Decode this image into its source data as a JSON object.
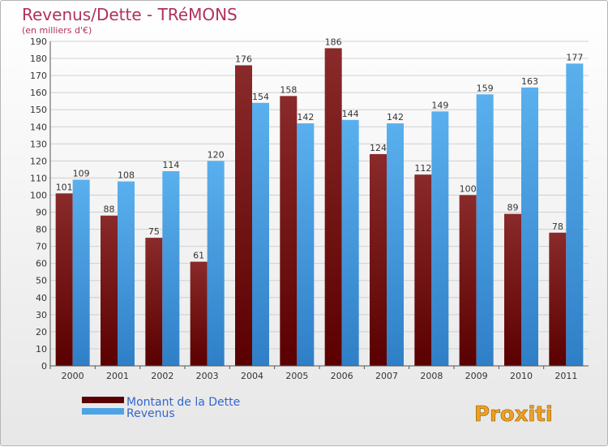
{
  "chart_data": {
    "type": "bar",
    "title": "Revenus/Dette - TRéMONS",
    "subtitle": "(en milliers d'€)",
    "categories": [
      "2000",
      "2001",
      "2002",
      "2003",
      "2004",
      "2005",
      "2006",
      "2007",
      "2008",
      "2009",
      "2010",
      "2011"
    ],
    "series": [
      {
        "name": "Montant de la Dette",
        "color": "#7a1a1a",
        "values": [
          101,
          88,
          75,
          61,
          176,
          158,
          186,
          124,
          112,
          100,
          89,
          78
        ]
      },
      {
        "name": "Revenus",
        "color": "#4da3e3",
        "values": [
          109,
          108,
          114,
          120,
          154,
          142,
          144,
          142,
          149,
          159,
          163,
          177
        ]
      }
    ],
    "ylim": [
      0,
      190
    ],
    "yticks": [
      0,
      10,
      20,
      30,
      40,
      50,
      60,
      70,
      80,
      90,
      100,
      110,
      120,
      130,
      140,
      150,
      160,
      170,
      180,
      190
    ],
    "grid": true,
    "legend": "bottom-left"
  },
  "branding": {
    "logo_text": "Proxiti"
  }
}
